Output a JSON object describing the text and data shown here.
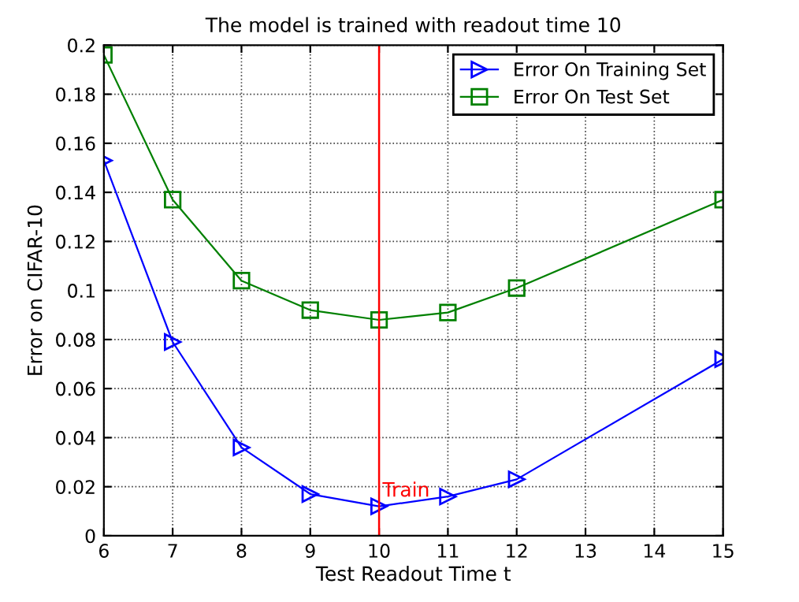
{
  "chart_data": {
    "type": "line",
    "title": "The model is trained with readout time 10",
    "xlabel": "Test Readout Time t",
    "ylabel": "Error on CIFAR-10",
    "x": [
      6,
      7,
      8,
      9,
      10,
      11,
      12,
      15
    ],
    "series": [
      {
        "name": "Error On Training Set",
        "color": "#0000ff",
        "marker": "triangle",
        "values": [
          0.153,
          0.079,
          0.036,
          0.017,
          0.012,
          0.016,
          0.023,
          0.072
        ]
      },
      {
        "name": "Error On Test Set",
        "color": "#008000",
        "marker": "square",
        "values": [
          0.196,
          0.137,
          0.104,
          0.092,
          0.088,
          0.091,
          0.101,
          0.137
        ]
      }
    ],
    "xlim": [
      6,
      15
    ],
    "xticks": [
      6,
      7,
      8,
      9,
      10,
      11,
      12,
      13,
      14,
      15
    ],
    "ylim": [
      0,
      0.2
    ],
    "yticks": [
      0,
      0.02,
      0.04,
      0.06,
      0.08,
      0.1,
      0.12,
      0.14,
      0.16,
      0.18,
      0.2
    ],
    "ref_lines": [
      {
        "axis": "x",
        "value": 10,
        "label": "Train",
        "color": "#ff0000"
      }
    ],
    "grid": true,
    "legend": "top right",
    "line_style": "solid"
  }
}
